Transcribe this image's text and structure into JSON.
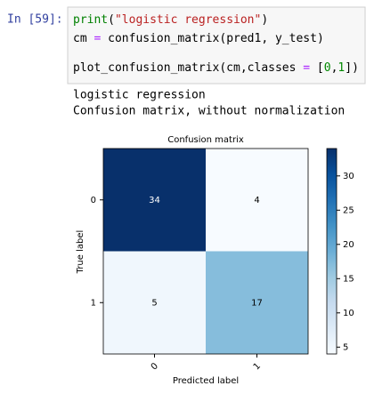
{
  "cell": {
    "prompt": "In [59]:",
    "code": [
      "print(\"logistic regression\")",
      "cm = confusion_matrix(pred1, y_test)",
      "plot_confusion_matrix(cm,classes = [0,1])"
    ]
  },
  "output": [
    "logistic regression",
    "Confusion matrix, without normalization"
  ],
  "chart_data": {
    "type": "heatmap",
    "title": "Confusion matrix",
    "xlabel": "Predicted label",
    "ylabel": "True label",
    "xcategories": [
      "0",
      "1"
    ],
    "ycategories": [
      "0",
      "1"
    ],
    "values": [
      [
        34,
        4
      ],
      [
        5,
        17
      ]
    ],
    "colormap": "Blues",
    "clim": [
      4,
      34
    ],
    "cticks": [
      5,
      10,
      15,
      20,
      25,
      30
    ]
  }
}
